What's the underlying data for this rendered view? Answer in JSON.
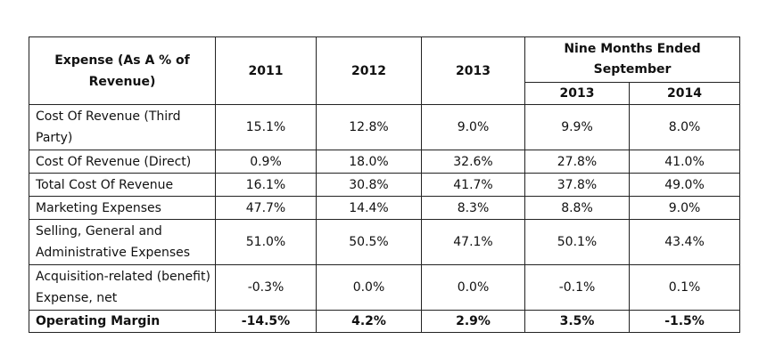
{
  "table": {
    "header": {
      "label_col": "Expense (As A % of Revenue)",
      "year_cols": [
        "2011",
        "2012",
        "2013"
      ],
      "group_label": "Nine Months Ended September",
      "group_cols": [
        "2013",
        "2014"
      ]
    },
    "rows": [
      {
        "label": "Cost Of Revenue (Third Party)",
        "values": [
          "15.1%",
          "12.8%",
          "9.0%",
          "9.9%",
          "8.0%"
        ]
      },
      {
        "label": "Cost Of Revenue (Direct)",
        "values": [
          "0.9%",
          "18.0%",
          "32.6%",
          "27.8%",
          "41.0%"
        ]
      },
      {
        "label": "Total Cost Of Revenue",
        "values": [
          "16.1%",
          "30.8%",
          "41.7%",
          "37.8%",
          "49.0%"
        ]
      },
      {
        "label": "Marketing Expenses",
        "values": [
          "47.7%",
          "14.4%",
          "8.3%",
          "8.8%",
          "9.0%"
        ]
      },
      {
        "label": "Selling, General and Administrative Expenses",
        "values": [
          "51.0%",
          "50.5%",
          "47.1%",
          "50.1%",
          "43.4%"
        ]
      },
      {
        "label": "Acquisition-related (benefit) Expense, net",
        "values": [
          "-0.3%",
          "0.0%",
          "0.0%",
          "-0.1%",
          "0.1%"
        ]
      },
      {
        "label": "Operating Margin",
        "values": [
          "-14.5%",
          "4.2%",
          "2.9%",
          "3.5%",
          "-1.5%"
        ]
      }
    ]
  }
}
